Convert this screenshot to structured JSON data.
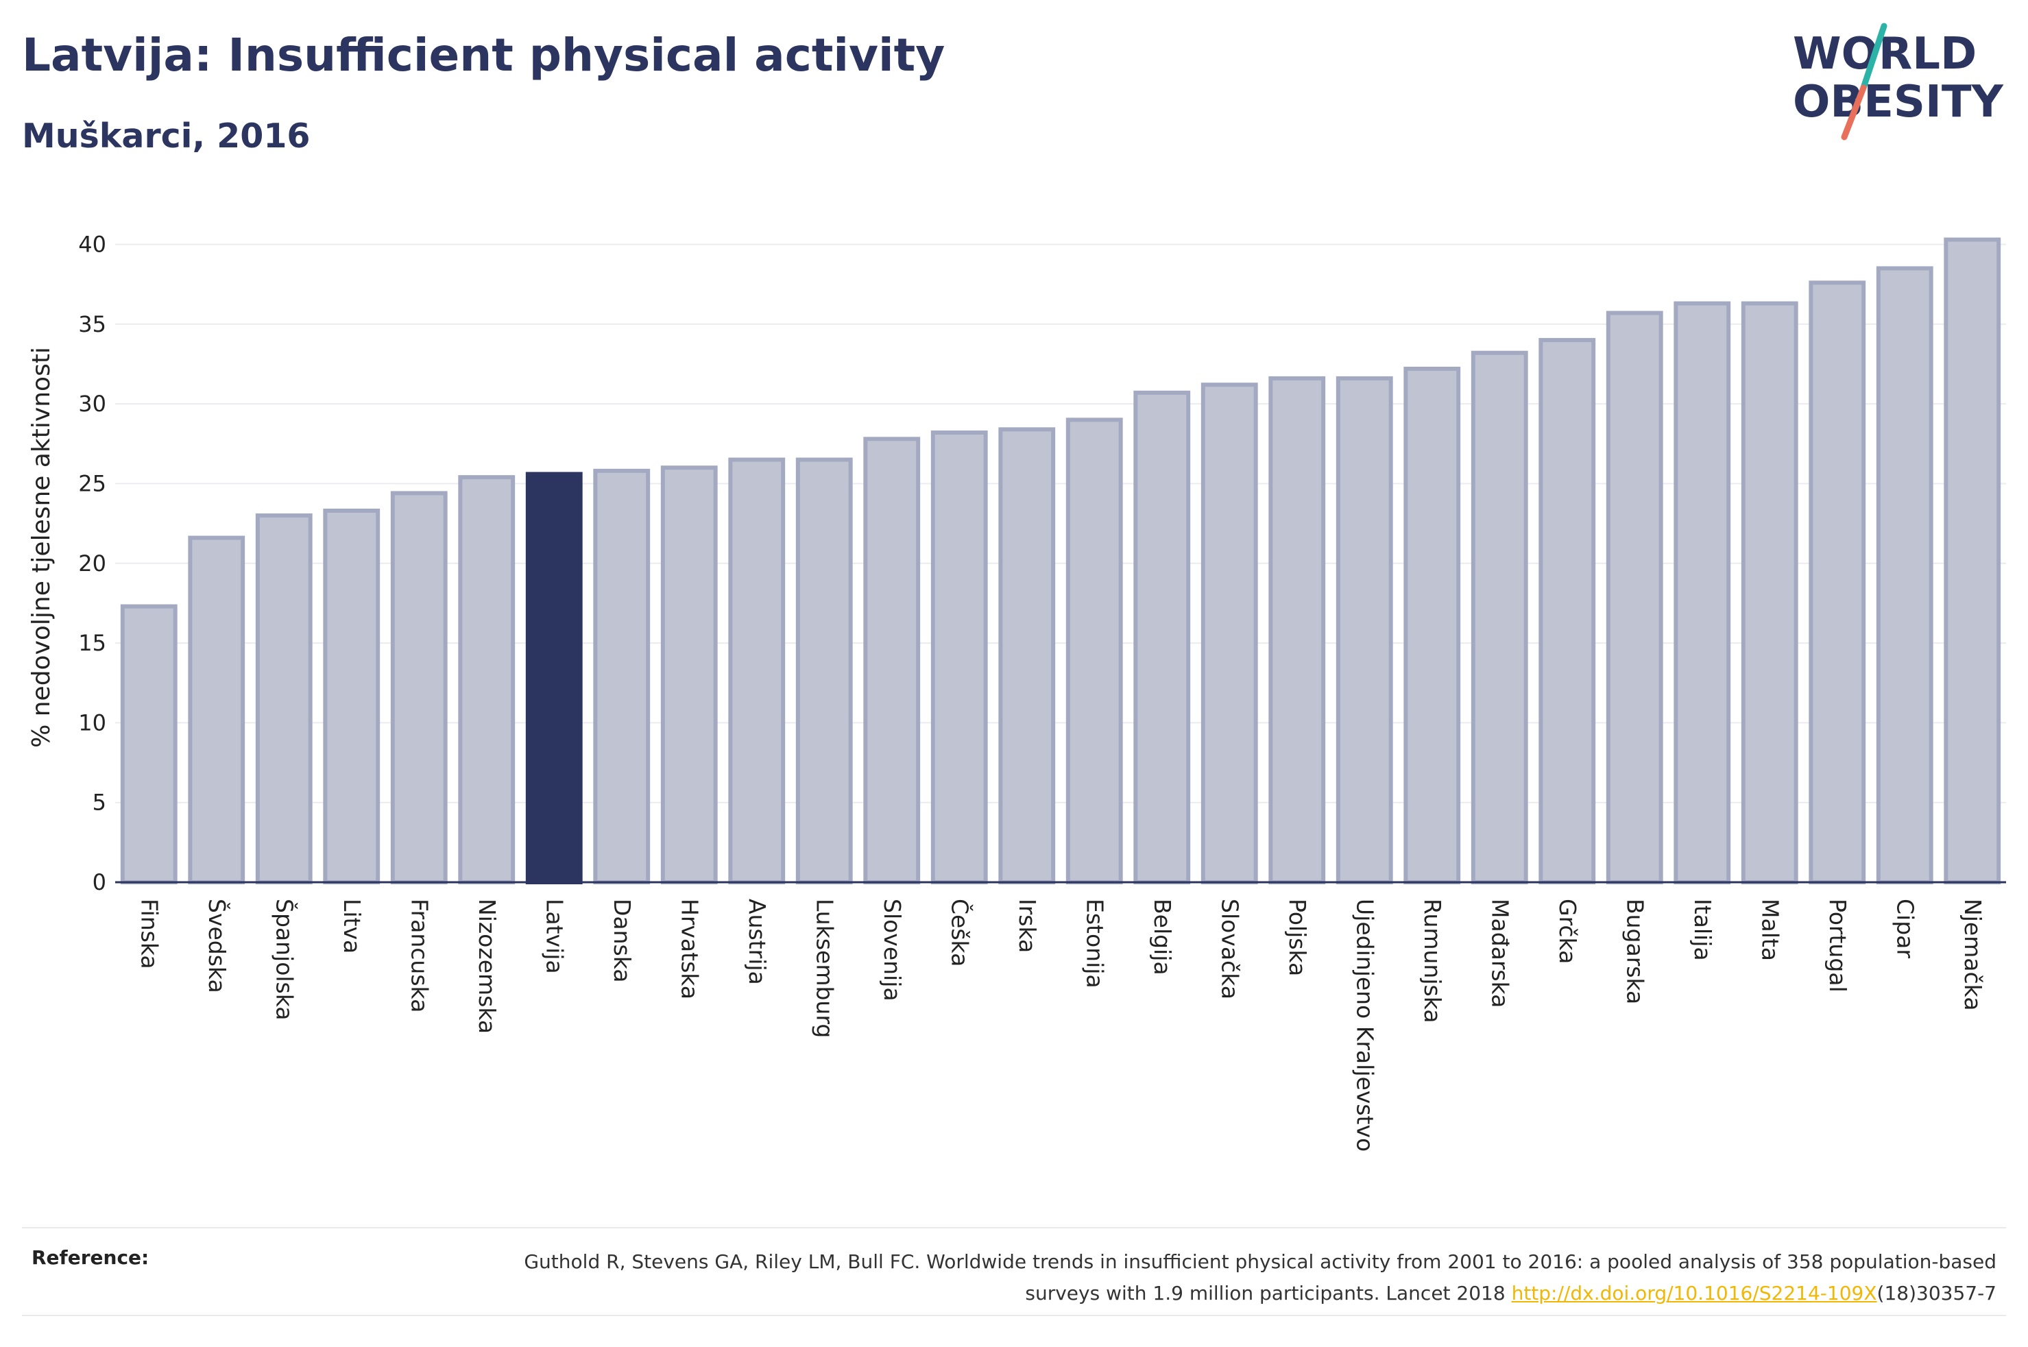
{
  "header": {
    "title": "Latvija: Insufficient physical activity",
    "subtitle": "Muškarci, 2016"
  },
  "logo": {
    "line1": "WORLD",
    "line2": "OBESITY"
  },
  "colors": {
    "bar": "#c0c4d2",
    "bar_border": "#a3a9c1",
    "highlight": "#2b3560",
    "grid": "#ececf0",
    "axis": "#2b3560",
    "logo_teal": "#2bb3a7",
    "logo_coral": "#e8705a",
    "link": "#f2b705"
  },
  "chart_data": {
    "type": "bar",
    "ylabel": "% nedovoljne tjelesne aktivnosti",
    "ylim": [
      0,
      42
    ],
    "yticks": [
      0,
      5,
      10,
      15,
      20,
      25,
      30,
      35,
      40
    ],
    "grid": true,
    "highlight": "Latvija",
    "categories": [
      "Finska",
      "Švedska",
      "Španjolska",
      "Litva",
      "Francuska",
      "Nizozemska",
      "Latvija",
      "Danska",
      "Hrvatska",
      "Austrija",
      "Luksemburg",
      "Slovenija",
      "Češka",
      "Irska",
      "Estonija",
      "Belgija",
      "Slovačka",
      "Poljska",
      "Ujedinjeno Kraljevstvo",
      "Rumunjska",
      "Mađarska",
      "Grčka",
      "Bugarska",
      "Italija",
      "Malta",
      "Portugal",
      "Cipar",
      "Njemačka"
    ],
    "values": [
      17.3,
      21.6,
      23.0,
      23.3,
      24.4,
      25.4,
      25.6,
      25.8,
      26.0,
      26.5,
      26.5,
      27.8,
      28.2,
      28.4,
      29.0,
      30.7,
      31.2,
      31.6,
      31.6,
      32.2,
      33.2,
      34.0,
      35.7,
      36.3,
      36.3,
      37.6,
      38.5,
      40.3
    ]
  },
  "reference": {
    "label": "Reference:",
    "text": "Guthold R, Stevens GA, Riley LM, Bull FC. Worldwide trends in insufficient physical activity from 2001 to 2016: a pooled analysis of 358 population-based surveys with 1.9 million participants. Lancet 2018 ",
    "link": "http://dx.doi.org/10.1016/S2214-109X",
    "suffix": "(18)30357-7"
  }
}
